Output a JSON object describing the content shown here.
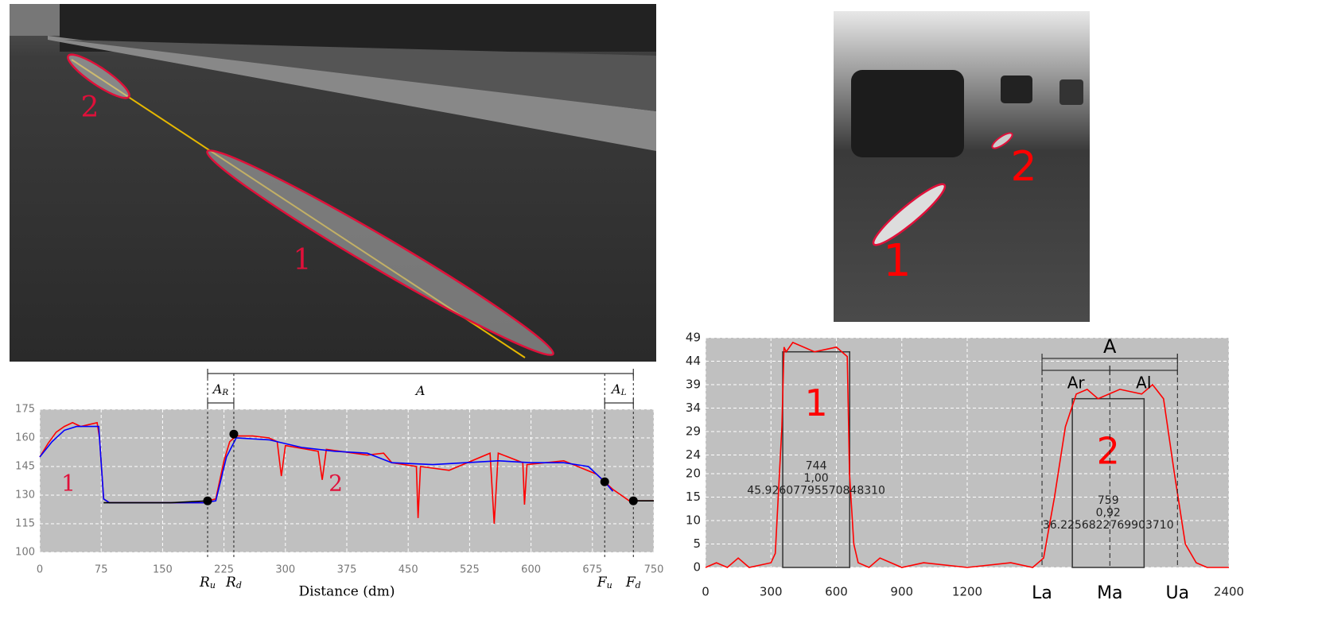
{
  "images": [
    {
      "labels": [
        "2",
        "1"
      ]
    },
    {
      "labels": [
        "1",
        "2"
      ]
    }
  ],
  "chart_data": [
    {
      "type": "line",
      "x_label": "Distance (dm)",
      "xlim": [
        0,
        750
      ],
      "xticks": [
        0,
        75,
        150,
        225,
        300,
        375,
        450,
        525,
        600,
        675,
        750
      ],
      "ylim": [
        100,
        175
      ],
      "yticks": [
        100,
        115,
        130,
        145,
        160,
        175
      ],
      "grid": true,
      "series": [
        {
          "color": "#ff0000",
          "x": [
            0,
            10,
            20,
            30,
            40,
            50,
            60,
            70,
            73,
            78,
            85,
            100,
            150,
            200,
            205,
            215,
            225,
            232,
            240,
            260,
            280,
            290,
            295,
            300,
            340,
            345,
            350,
            400,
            420,
            430,
            460,
            462,
            465,
            500,
            550,
            555,
            560,
            590,
            592,
            595,
            640,
            680,
            690,
            700,
            720,
            725,
            750
          ],
          "values": [
            150,
            157,
            163,
            166,
            168,
            166,
            167,
            168,
            160,
            128,
            126,
            126,
            126,
            126,
            127,
            128,
            148,
            158,
            161,
            161,
            160,
            158,
            140,
            156,
            153,
            138,
            154,
            151,
            152,
            147,
            145,
            118,
            145,
            143,
            152,
            115,
            152,
            147,
            125,
            146,
            148,
            141,
            137,
            133,
            127,
            127,
            127
          ]
        },
        {
          "color": "#0000ff",
          "x": [
            0,
            15,
            30,
            45,
            60,
            72,
            78,
            85,
            200,
            215,
            228,
            240,
            280,
            320,
            360,
            400,
            430,
            480,
            520,
            560,
            600,
            640,
            670,
            690,
            700
          ],
          "values": [
            150,
            158,
            164,
            166,
            166,
            166,
            128,
            126,
            126,
            127,
            150,
            160,
            159,
            155,
            153,
            152,
            147,
            146,
            147,
            148,
            147,
            147,
            145,
            137,
            132
          ]
        },
        {
          "color": "#000000",
          "x": [
            78,
            120,
            160,
            205,
            710,
            725,
            750
          ],
          "values": [
            126,
            126,
            126,
            127,
            null,
            127,
            127
          ]
        }
      ],
      "points": {
        "x": [
          205,
          237,
          690,
          725
        ],
        "values": [
          127,
          162,
          137,
          127
        ],
        "labels": [
          {
            "text": "R",
            "sub": "u"
          },
          {
            "text": "R",
            "sub": "d"
          },
          {
            "text": "F",
            "sub": "u"
          },
          {
            "text": "F",
            "sub": "d"
          }
        ]
      },
      "spans": [
        {
          "text": "A",
          "sub": "R",
          "from": 205,
          "to": 237
        },
        {
          "text": "A",
          "from": 205,
          "to": 725
        },
        {
          "text": "A",
          "sub": "L",
          "from": 690,
          "to": 725
        }
      ],
      "region_labels": [
        "1",
        "2"
      ]
    },
    {
      "type": "line",
      "xlim": [
        0,
        2400
      ],
      "xticks": [
        0,
        300,
        600,
        900,
        1200,
        2400
      ],
      "ylim": [
        0,
        49
      ],
      "yticks": [
        0,
        5,
        10,
        15,
        20,
        24,
        29,
        34,
        39,
        44,
        49
      ],
      "grid": true,
      "series": [
        {
          "color": "#ff0000",
          "x": [
            0,
            50,
            100,
            150,
            200,
            300,
            320,
            350,
            360,
            370,
            400,
            500,
            600,
            650,
            660,
            680,
            700,
            750,
            800,
            900,
            1000,
            1200,
            1400,
            1500,
            1550,
            1600,
            1650,
            1700,
            1750,
            1800,
            1900,
            2000,
            2050,
            2100,
            2150,
            2200,
            2250,
            2300,
            2400
          ],
          "values": [
            0,
            1,
            0,
            2,
            0,
            1,
            3,
            30,
            47,
            46,
            48,
            46,
            47,
            45,
            20,
            5,
            1,
            0,
            2,
            0,
            1,
            0,
            1,
            0,
            2,
            15,
            30,
            37,
            38,
            36,
            38,
            37,
            39,
            36,
            20,
            5,
            1,
            0,
            0
          ]
        }
      ],
      "boxes": [
        {
          "x0": 354,
          "x1": 661,
          "top": 46,
          "label": "1",
          "texts": [
            "744",
            "1,00",
            "45.92607795570848310"
          ]
        },
        {
          "x0": 1682,
          "x1": 2011,
          "top": 36,
          "label": "2",
          "texts": [
            "759",
            "0,92",
            "36.2256822769903710"
          ]
        }
      ],
      "x_markers": [
        {
          "label": "La",
          "value": 1543
        },
        {
          "label": "Ma",
          "value": 1854
        },
        {
          "label": "Ua",
          "value": 2164
        }
      ],
      "spans": [
        {
          "text": "A",
          "from": 1543,
          "to": 2164
        },
        {
          "text": "Ar",
          "from": 1543,
          "to": 1854
        },
        {
          "text": "Al",
          "from": 1854,
          "to": 2164
        }
      ]
    }
  ]
}
